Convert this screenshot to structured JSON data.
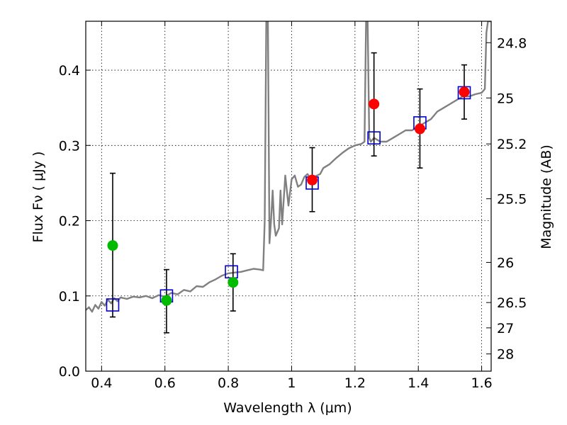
{
  "chart_data": {
    "type": "scatter",
    "title": "",
    "xlabel": "Wavelength  λ (μm)",
    "ylabel": "Flux  Fν  ( μJy )",
    "y2label": "Magnitude (AB)",
    "xlim": [
      0.35,
      1.63
    ],
    "ylim": [
      0,
      0.465
    ],
    "grid": true,
    "x_ticks": [
      {
        "v": 0.4,
        "label": "0.4"
      },
      {
        "v": 0.6,
        "label": "0.6"
      },
      {
        "v": 0.8,
        "label": "0.8"
      },
      {
        "v": 1.0,
        "label": "1"
      },
      {
        "v": 1.2,
        "label": "1.2"
      },
      {
        "v": 1.4,
        "label": "1.4"
      },
      {
        "v": 1.6,
        "label": "1.6"
      }
    ],
    "y_ticks": [
      {
        "v": 0.0,
        "label": "0.0"
      },
      {
        "v": 0.1,
        "label": "0.1"
      },
      {
        "v": 0.2,
        "label": "0.2"
      },
      {
        "v": 0.3,
        "label": "0.3"
      },
      {
        "v": 0.4,
        "label": "0.4"
      }
    ],
    "y2_ticks": [
      {
        "mag": 24.8,
        "label": "24.8"
      },
      {
        "mag": 25.0,
        "label": "25"
      },
      {
        "mag": 25.2,
        "label": "25.2"
      },
      {
        "mag": 25.5,
        "label": "25.5"
      },
      {
        "mag": 26.0,
        "label": "26"
      },
      {
        "mag": 26.5,
        "label": "26.5"
      },
      {
        "mag": 27.0,
        "label": "27"
      },
      {
        "mag": 28.0,
        "label": "28"
      }
    ],
    "series": [
      {
        "kind": "model-spectrum",
        "color": "#808080",
        "x": [
          0.35,
          0.36,
          0.37,
          0.38,
          0.39,
          0.4,
          0.41,
          0.42,
          0.43,
          0.44,
          0.45,
          0.46,
          0.48,
          0.5,
          0.52,
          0.54,
          0.56,
          0.58,
          0.6,
          0.62,
          0.64,
          0.66,
          0.68,
          0.7,
          0.72,
          0.74,
          0.76,
          0.78,
          0.8,
          0.82,
          0.84,
          0.86,
          0.88,
          0.9,
          0.91,
          0.915,
          0.92,
          0.925,
          0.93,
          0.935,
          0.94,
          0.945,
          0.95,
          0.96,
          0.965,
          0.97,
          0.98,
          0.99,
          1.0,
          1.01,
          1.02,
          1.03,
          1.04,
          1.05,
          1.06,
          1.07,
          1.08,
          1.09,
          1.1,
          1.12,
          1.14,
          1.16,
          1.18,
          1.2,
          1.22,
          1.23,
          1.235,
          1.24,
          1.245,
          1.25,
          1.26,
          1.28,
          1.3,
          1.32,
          1.34,
          1.36,
          1.38,
          1.4,
          1.42,
          1.44,
          1.46,
          1.48,
          1.5,
          1.52,
          1.54,
          1.56,
          1.58,
          1.6,
          1.61,
          1.615,
          1.62,
          1.625,
          1.63
        ],
        "y": [
          0.081,
          0.085,
          0.079,
          0.088,
          0.083,
          0.092,
          0.087,
          0.095,
          0.09,
          0.097,
          0.093,
          0.098,
          0.096,
          0.099,
          0.098,
          0.1,
          0.097,
          0.101,
          0.099,
          0.104,
          0.102,
          0.108,
          0.106,
          0.113,
          0.112,
          0.118,
          0.122,
          0.127,
          0.13,
          0.131,
          0.132,
          0.134,
          0.136,
          0.135,
          0.134,
          0.2,
          0.465,
          0.465,
          0.17,
          0.2,
          0.24,
          0.195,
          0.18,
          0.19,
          0.24,
          0.195,
          0.26,
          0.22,
          0.255,
          0.26,
          0.245,
          0.248,
          0.258,
          0.262,
          0.256,
          0.258,
          0.26,
          0.262,
          0.27,
          0.275,
          0.283,
          0.29,
          0.296,
          0.3,
          0.302,
          0.305,
          0.465,
          0.465,
          0.31,
          0.305,
          0.31,
          0.305,
          0.305,
          0.31,
          0.315,
          0.32,
          0.32,
          0.325,
          0.33,
          0.335,
          0.345,
          0.35,
          0.355,
          0.36,
          0.365,
          0.365,
          0.368,
          0.37,
          0.375,
          0.45,
          0.465,
          0.465,
          0.465
        ]
      },
      {
        "kind": "model-photometry",
        "marker": "open-square",
        "color": "#0000cc",
        "x": [
          0.435,
          0.605,
          0.81,
          1.065,
          1.26,
          1.405,
          1.545
        ],
        "y": [
          0.088,
          0.1,
          0.132,
          0.25,
          0.31,
          0.33,
          0.37
        ]
      },
      {
        "kind": "observed-flux",
        "marker": "filled-circle",
        "color": "#00bb00",
        "x": [
          0.435,
          0.605,
          0.815
        ],
        "y": [
          0.167,
          0.094,
          0.118
        ],
        "yerr_low": [
          0.072,
          0.051,
          0.08
        ],
        "yerr_high": [
          0.263,
          0.135,
          0.156
        ]
      },
      {
        "kind": "observed-flux",
        "marker": "filled-circle",
        "color": "#ff0000",
        "x": [
          1.065,
          1.26,
          1.405,
          1.545
        ],
        "y": [
          0.254,
          0.355,
          0.322,
          0.371
        ],
        "yerr_low": [
          0.212,
          0.286,
          0.27,
          0.335
        ],
        "yerr_high": [
          0.297,
          0.423,
          0.375,
          0.407
        ]
      }
    ]
  }
}
